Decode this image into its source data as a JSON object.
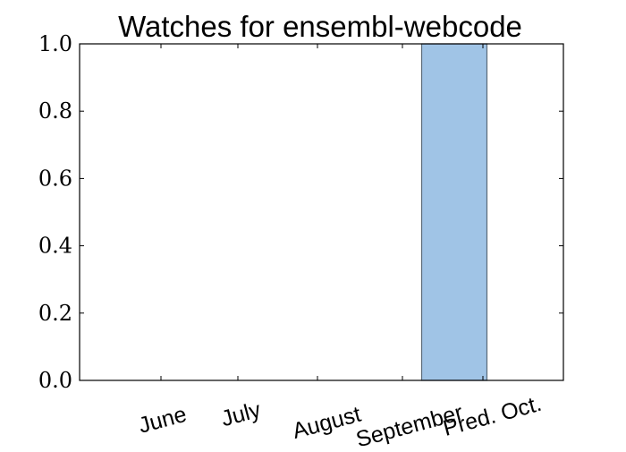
{
  "chart_data": {
    "type": "bar",
    "title": "Watches for ensembl-webcode",
    "xlabel": "",
    "ylabel": "",
    "categories": [
      "June",
      "July",
      "August",
      "September",
      "Pred. Oct."
    ],
    "values": [
      0,
      0,
      0,
      0,
      1.0
    ],
    "ylim": [
      0,
      1.0
    ],
    "yticks": [
      "0.0",
      "0.2",
      "0.4",
      "0.6",
      "0.8",
      "1.0"
    ],
    "grid": false,
    "bar_color": "#a0c4e6",
    "bar_edge_color": "#5a6a78"
  }
}
